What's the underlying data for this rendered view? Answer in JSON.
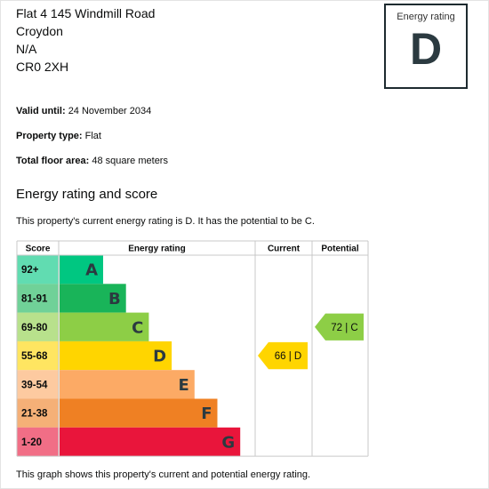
{
  "address": {
    "line1": "Flat 4 145 Windmill Road",
    "line2": "Croydon",
    "line3": "N/A",
    "postcode": "CR0 2XH"
  },
  "rating_box": {
    "label": "Energy rating",
    "letter": "D"
  },
  "facts": [
    {
      "label": "Valid until:",
      "value": "24 November 2034"
    },
    {
      "label": "Property type:",
      "value": "Flat"
    },
    {
      "label": "Total floor area:",
      "value": "48 square meters"
    }
  ],
  "section": {
    "title": "Energy rating and score",
    "intro": "This property's current energy rating is D. It has the potential to be C.",
    "footer": "This graph shows this property's current and potential energy rating."
  },
  "chart_data": {
    "type": "bar",
    "columns": [
      "Score",
      "Energy rating",
      "Current",
      "Potential"
    ],
    "bands": [
      {
        "score": "92+",
        "letter": "A",
        "color": "#00c781",
        "text_color": "#2b3a40",
        "level": 1
      },
      {
        "score": "81-91",
        "letter": "B",
        "color": "#19b459",
        "text_color": "#2b3a40",
        "level": 2
      },
      {
        "score": "69-80",
        "letter": "C",
        "color": "#8dce46",
        "text_color": "#2b3a40",
        "level": 3
      },
      {
        "score": "55-68",
        "letter": "D",
        "color": "#ffd500",
        "text_color": "#2b3a40",
        "level": 4
      },
      {
        "score": "39-54",
        "letter": "E",
        "color": "#fcaa65",
        "text_color": "#2b3a40",
        "level": 5
      },
      {
        "score": "21-38",
        "letter": "F",
        "color": "#ef8023",
        "text_color": "#2b3a40",
        "level": 6
      },
      {
        "score": "1-20",
        "letter": "G",
        "color": "#e9153b",
        "text_color": "#2b3a40",
        "level": 7
      }
    ],
    "current": {
      "label": "66 | D",
      "score": 66,
      "band": "D",
      "color": "#ffd500"
    },
    "potential": {
      "label": "72 | C",
      "score": 72,
      "band": "C",
      "color": "#8dce46"
    }
  }
}
